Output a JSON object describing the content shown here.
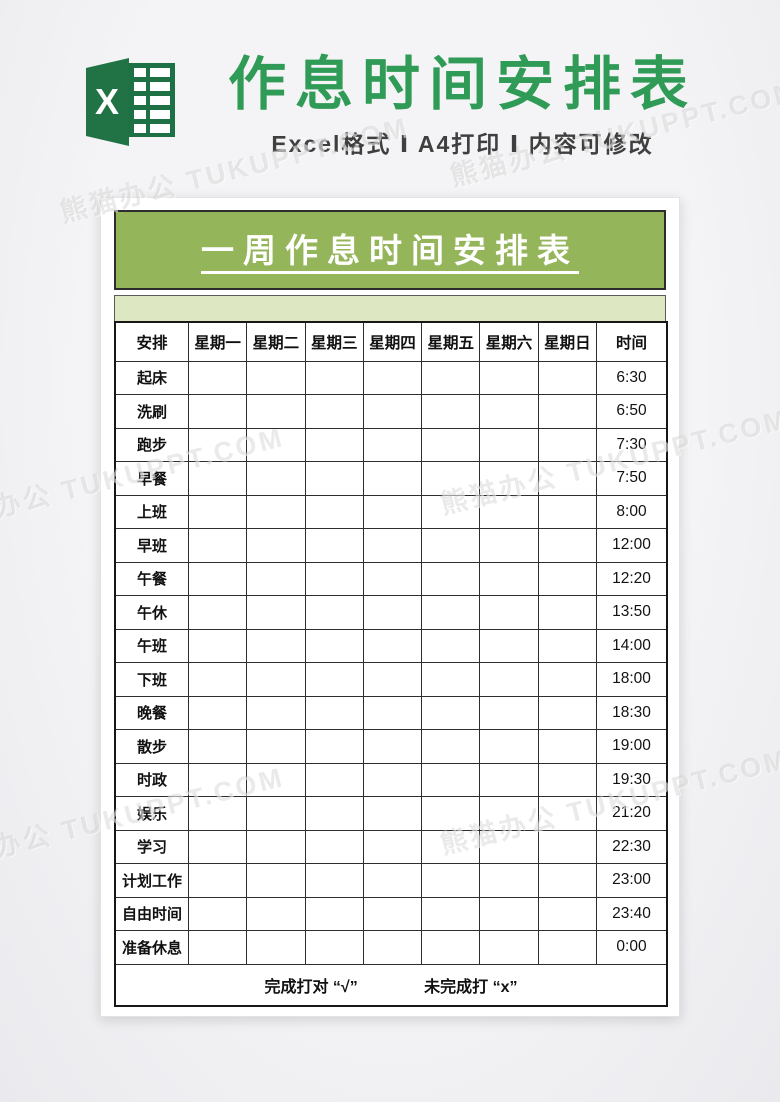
{
  "page": {
    "watermark_text": "熊猫办公 TUKUPPT.COM",
    "background_color": "#f2f2f4"
  },
  "header": {
    "icon": "excel-logo",
    "excel_green": "#1e7145",
    "title": "作息时间安排表",
    "title_color": "#2f9b57",
    "subtitle": "Excel格式 Ⅰ A4打印 Ⅰ 内容可修改"
  },
  "document": {
    "banner_title": "一周作息时间安排表",
    "banner_color": "#95b55a",
    "band_color": "#dde7c2",
    "table": {
      "columns": [
        "安排",
        "星期一",
        "星期二",
        "星期三",
        "星期四",
        "星期五",
        "星期六",
        "星期日",
        "时间"
      ],
      "rows": [
        {
          "activity": "起床",
          "time": "6:30"
        },
        {
          "activity": "洗刷",
          "time": "6:50"
        },
        {
          "activity": "跑步",
          "time": "7:30"
        },
        {
          "activity": "早餐",
          "time": "7:50"
        },
        {
          "activity": "上班",
          "time": "8:00"
        },
        {
          "activity": "早班",
          "time": "12:00"
        },
        {
          "activity": "午餐",
          "time": "12:20"
        },
        {
          "activity": "午休",
          "time": "13:50"
        },
        {
          "activity": "午班",
          "time": "14:00"
        },
        {
          "activity": "下班",
          "time": "18:00"
        },
        {
          "activity": "晚餐",
          "time": "18:30"
        },
        {
          "activity": "散步",
          "time": "19:00"
        },
        {
          "activity": "时政",
          "time": "19:30"
        },
        {
          "activity": "娱乐",
          "time": "21:20"
        },
        {
          "activity": "学习",
          "time": "22:30"
        },
        {
          "activity": "计划工作",
          "time": "23:00"
        },
        {
          "activity": "自由时间",
          "time": "23:40"
        },
        {
          "activity": "准备休息",
          "time": "0:00"
        }
      ],
      "footer_note_done": "完成打对 “√”",
      "footer_note_undone": "未完成打 “x”"
    }
  }
}
